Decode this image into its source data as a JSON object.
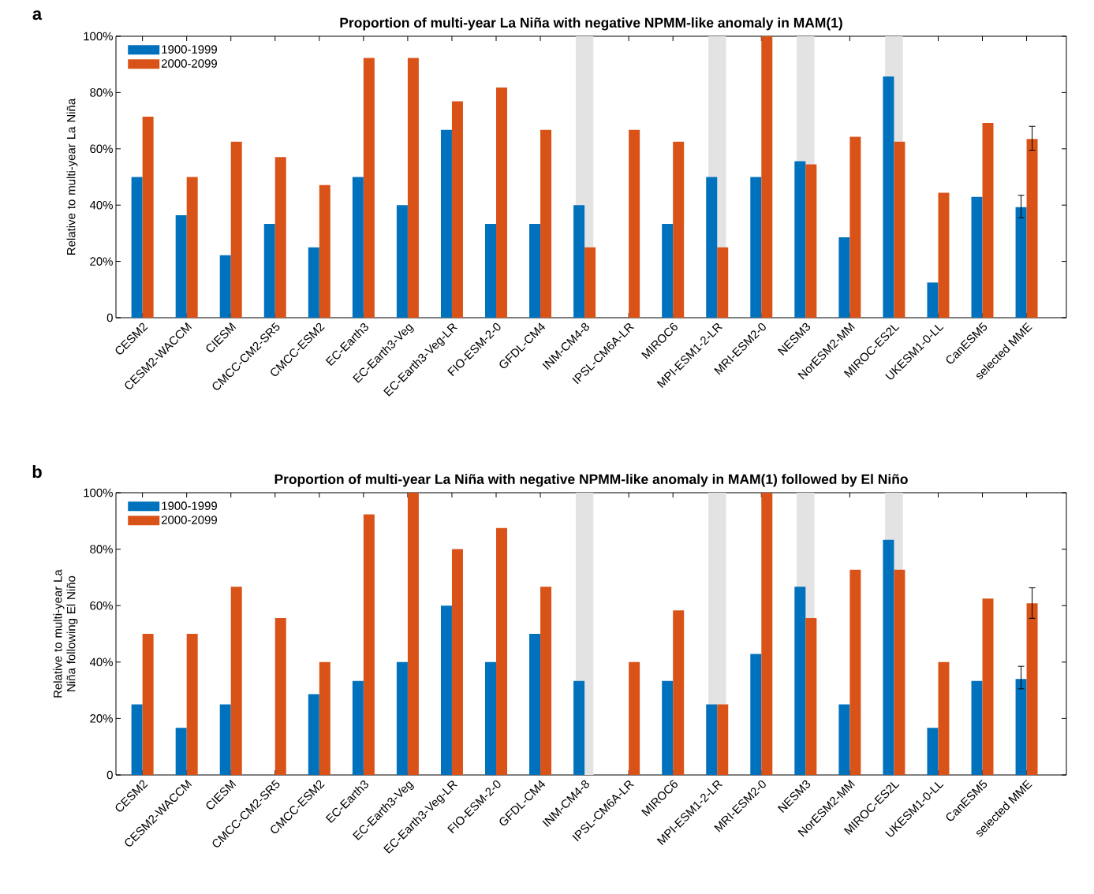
{
  "chart_data": [
    {
      "type": "bar",
      "title": "Proportion of multi-year La Niña with negative NPMM-like anomaly in MAM(1)",
      "ylabel": "Relative to multi-year La Niña",
      "annotations": [
        "a"
      ],
      "categories": [
        "CESM2",
        "CESM2-WACCM",
        "CIESM",
        "CMCC-CM2-SR5",
        "CMCC-ESM2",
        "EC-Earth3",
        "EC-Earth3-Veg",
        "EC-Earth3-Veg-LR",
        "FIO-ESM-2-0",
        "GFDL-CM4",
        "INM-CM4-8",
        "IPSL-CM6A-LR",
        "MIROC6",
        "MPI-ESM1-2-LR",
        "MRI-ESM2-0",
        "NESM3",
        "NorESM2-MM",
        "MIROC-ES2L",
        "UKESM1-0-LL",
        "CanESM5",
        "selected MME"
      ],
      "series": [
        {
          "name": "1900-1999",
          "color": "#0072bd",
          "values": [
            50,
            36.4,
            22.2,
            33.3,
            25,
            50,
            40,
            66.7,
            33.3,
            33.3,
            40,
            0,
            33.3,
            50,
            50,
            55.6,
            28.6,
            85.7,
            12.5,
            42.9,
            39.3
          ],
          "errors": [
            null,
            null,
            null,
            null,
            null,
            null,
            null,
            null,
            null,
            null,
            null,
            null,
            null,
            null,
            null,
            null,
            null,
            null,
            null,
            null,
            [
              35.5,
              43.5
            ]
          ]
        },
        {
          "name": "2000-2099",
          "color": "#d95319",
          "values": [
            71.4,
            50,
            62.5,
            57.1,
            47.1,
            92.3,
            92.3,
            76.9,
            81.8,
            66.7,
            25,
            66.7,
            62.5,
            25,
            100,
            54.5,
            64.3,
            62.5,
            44.4,
            69.2,
            63.5
          ],
          "errors": [
            null,
            null,
            null,
            null,
            null,
            null,
            null,
            null,
            null,
            null,
            null,
            null,
            null,
            null,
            null,
            null,
            null,
            null,
            null,
            null,
            [
              59.5,
              68
            ]
          ]
        }
      ],
      "ylim": [
        0,
        100
      ],
      "yticks": [
        0,
        {
          "value": 20,
          "label": "20%"
        },
        {
          "value": 40,
          "label": "40%"
        },
        {
          "value": 60,
          "label": "60%"
        },
        {
          "value": 80,
          "label": "80%"
        },
        {
          "value": 100,
          "label": "100%"
        }
      ],
      "bands": [
        {
          "axis": "x",
          "from": "INM-CM4-8",
          "to": "INM-CM4-8",
          "color": "#e3e3e3"
        },
        {
          "axis": "x",
          "from": "MPI-ESM1-2-LR",
          "to": "MPI-ESM1-2-LR",
          "color": "#e3e3e3"
        },
        {
          "axis": "x",
          "from": "NESM3",
          "to": "NESM3",
          "color": "#e3e3e3"
        },
        {
          "axis": "x",
          "from": "MIROC-ES2L",
          "to": "MIROC-ES2L",
          "color": "#e3e3e3"
        }
      ],
      "legend": "top left",
      "grid": false
    },
    {
      "type": "bar",
      "title": "Proportion of multi-year La Niña with negative NPMM-like anomaly in MAM(1) followed by El Niño",
      "ylabel": "Relative to multi-year La Niña following El Niño",
      "annotations": [
        "b"
      ],
      "categories": [
        "CESM2",
        "CESM2-WACCM",
        "CIESM",
        "CMCC-CM2-SR5",
        "CMCC-ESM2",
        "EC-Earth3",
        "EC-Earth3-Veg",
        "EC-Earth3-Veg-LR",
        "FIO-ESM-2-0",
        "GFDL-CM4",
        "INM-CM4-8",
        "IPSL-CM6A-LR",
        "MIROC6",
        "MPI-ESM1-2-LR",
        "MRI-ESM2-0",
        "NESM3",
        "NorESM2-MM",
        "MIROC-ES2L",
        "UKESM1-0-LL",
        "CanESM5",
        "selected MME"
      ],
      "series": [
        {
          "name": "1900-1999",
          "color": "#0072bd",
          "values": [
            25,
            16.7,
            25,
            0,
            28.6,
            33.3,
            40,
            60,
            40,
            50,
            33.3,
            0,
            33.3,
            25,
            42.9,
            66.7,
            25,
            83.3,
            16.7,
            33.3,
            34
          ],
          "errors": [
            null,
            null,
            null,
            null,
            null,
            null,
            null,
            null,
            null,
            null,
            null,
            null,
            null,
            null,
            null,
            null,
            null,
            null,
            null,
            null,
            [
              30.5,
              38.5
            ]
          ]
        },
        {
          "name": "2000-2099",
          "color": "#d95319",
          "values": [
            50,
            50,
            66.7,
            55.6,
            40,
            92.3,
            100,
            80,
            87.5,
            66.7,
            0,
            40,
            58.3,
            25,
            100,
            55.6,
            72.7,
            72.7,
            40,
            62.5,
            60.8
          ],
          "errors": [
            null,
            null,
            null,
            null,
            null,
            null,
            null,
            null,
            null,
            null,
            null,
            null,
            null,
            null,
            null,
            null,
            null,
            null,
            null,
            null,
            [
              55.5,
              66.3
            ]
          ]
        }
      ],
      "ylim": [
        0,
        100
      ],
      "yticks": [
        0,
        {
          "value": 20,
          "label": "20%"
        },
        {
          "value": 40,
          "label": "40%"
        },
        {
          "value": 60,
          "label": "60%"
        },
        {
          "value": 80,
          "label": "80%"
        },
        {
          "value": 100,
          "label": "100%"
        }
      ],
      "bands": [
        {
          "axis": "x",
          "from": "INM-CM4-8",
          "to": "INM-CM4-8",
          "color": "#e3e3e3"
        },
        {
          "axis": "x",
          "from": "MPI-ESM1-2-LR",
          "to": "MPI-ESM1-2-LR",
          "color": "#e3e3e3"
        },
        {
          "axis": "x",
          "from": "NESM3",
          "to": "NESM3",
          "color": "#e3e3e3"
        },
        {
          "axis": "x",
          "from": "MIROC-ES2L",
          "to": "MIROC-ES2L",
          "color": "#e3e3e3"
        }
      ],
      "legend": "top left",
      "grid": false
    }
  ]
}
